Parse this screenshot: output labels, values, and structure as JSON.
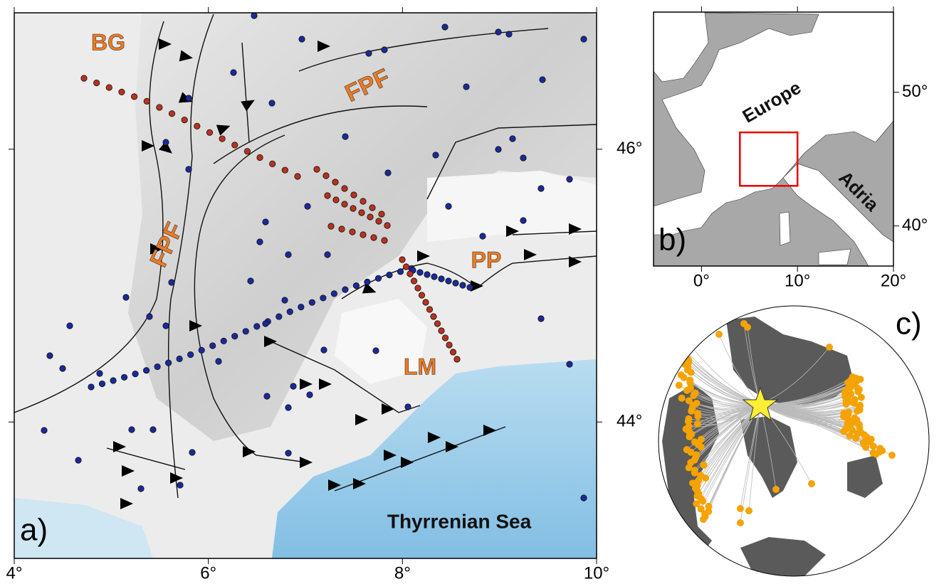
{
  "panel_a": {
    "label": "a)",
    "xlim": [
      4,
      10
    ],
    "ylim": [
      43,
      47
    ],
    "xticks": [
      {
        "value": 4,
        "label": "4°"
      },
      {
        "value": 6,
        "label": "6°"
      },
      {
        "value": 8,
        "label": "8°"
      },
      {
        "value": 10,
        "label": "10°"
      }
    ],
    "yticks": [
      {
        "value": 44,
        "label": "44°"
      },
      {
        "value": 46,
        "label": "46°"
      }
    ],
    "annotations": [
      "BG",
      "FPF",
      "FPF",
      "PP",
      "LM",
      "Thyrrenian Sea"
    ]
  },
  "panel_b": {
    "label": "b)",
    "xlim": [
      -5,
      20
    ],
    "ylim": [
      37,
      56
    ],
    "xticks": [
      {
        "value": 0,
        "label": "0°"
      },
      {
        "value": 10,
        "label": "10°"
      },
      {
        "value": 20,
        "label": "20°"
      }
    ],
    "yticks": [
      {
        "value": 40,
        "label": "40°"
      },
      {
        "value": 50,
        "label": "50°"
      }
    ],
    "annotations": [
      "Europe",
      "Adria"
    ]
  },
  "panel_c": {
    "label": "c)"
  }
}
